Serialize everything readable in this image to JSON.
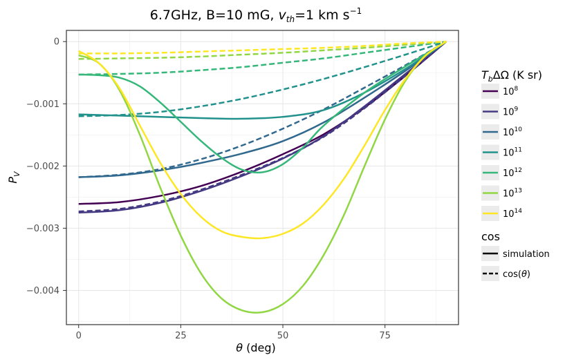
{
  "chart_data": {
    "type": "line",
    "title_main": "6.7GHz, B=10 mG, ",
    "title_var": "v",
    "title_sub": "th",
    "title_rest": "=1 km s",
    "title_sup": "−1",
    "xlabel_sym": "θ",
    "xlabel_rest": " (deg)",
    "ylabel_sym": "P",
    "ylabel_sub": "V",
    "xlim": [
      -3,
      93
    ],
    "ylim": [
      -0.00455,
      0.00018
    ],
    "xticks": [
      0,
      25,
      50,
      75
    ],
    "xtick_labels": [
      "0",
      "25",
      "50",
      "75"
    ],
    "yticks": [
      0,
      -0.001,
      -0.002,
      -0.003,
      -0.004
    ],
    "ytick_labels": [
      "0",
      "−0.001",
      "−0.002",
      "−0.003",
      "−0.004"
    ],
    "grid": true,
    "legend_color_title_sym": "T",
    "legend_color_title_sub": "b",
    "legend_color_title_rest": "ΔΩ (K sr)",
    "legend_color_entries": [
      {
        "base": "10",
        "exp": "8",
        "color": "#440154"
      },
      {
        "base": "10",
        "exp": "9",
        "color": "#443983"
      },
      {
        "base": "10",
        "exp": "10",
        "color": "#31688e"
      },
      {
        "base": "10",
        "exp": "11",
        "color": "#21918c"
      },
      {
        "base": "10",
        "exp": "12",
        "color": "#35b779"
      },
      {
        "base": "10",
        "exp": "13",
        "color": "#90d743"
      },
      {
        "base": "10",
        "exp": "14",
        "color": "#fde725"
      }
    ],
    "legend_style_title": "cos",
    "legend_style_entries": [
      {
        "label": "simulation",
        "dash": "solid"
      },
      {
        "label_pre": "cos(",
        "label_sym": "θ",
        "label_post": ")",
        "dash": "dashed"
      }
    ],
    "series": [
      {
        "name": "10^8 simulation",
        "color": "#440154",
        "dash": "solid",
        "x": [
          0,
          10,
          20,
          30,
          40,
          50,
          60,
          70,
          80,
          90
        ],
        "y": [
          -0.00261,
          -0.00258,
          -0.00248,
          -0.00232,
          -0.00209,
          -0.00181,
          -0.00149,
          -0.00106,
          -0.00055,
          0
        ]
      },
      {
        "name": "10^9 simulation",
        "color": "#443983",
        "dash": "solid",
        "x": [
          0,
          10,
          20,
          30,
          40,
          50,
          60,
          70,
          80,
          90
        ],
        "y": [
          -0.00275,
          -0.00271,
          -0.00259,
          -0.0024,
          -0.00216,
          -0.00188,
          -0.00152,
          -0.00104,
          -0.00052,
          0
        ]
      },
      {
        "name": "10^9 cos",
        "color": "#443983",
        "dash": "dashed",
        "x": [
          0,
          10,
          20,
          30,
          40,
          50,
          60,
          70,
          80,
          90
        ],
        "y": [
          -0.00273,
          -0.00269,
          -0.00257,
          -0.00238,
          -0.00214,
          -0.00187,
          -0.00153,
          -0.00107,
          -0.00055,
          0
        ]
      },
      {
        "name": "10^10 simulation",
        "color": "#31688e",
        "dash": "solid",
        "x": [
          0,
          10,
          20,
          30,
          40,
          50,
          60,
          70,
          80,
          90
        ],
        "y": [
          -0.00218,
          -0.00215,
          -0.00207,
          -0.00195,
          -0.0018,
          -0.0016,
          -0.0013,
          -0.0009,
          -0.00047,
          0
        ]
      },
      {
        "name": "10^10 cos",
        "color": "#31688e",
        "dash": "dashed",
        "x": [
          0,
          10,
          20,
          30,
          40,
          50,
          60,
          70,
          80,
          90
        ],
        "y": [
          -0.00218,
          -0.00214,
          -0.00205,
          -0.00189,
          -0.00167,
          -0.0014,
          -0.00109,
          -0.00074,
          -0.00038,
          0
        ]
      },
      {
        "name": "10^11 simulation",
        "color": "#21918c",
        "dash": "solid",
        "x": [
          0,
          10,
          20,
          30,
          40,
          50,
          60,
          70,
          80,
          90
        ],
        "y": [
          -0.00117,
          -0.00119,
          -0.00121,
          -0.00123,
          -0.00124,
          -0.00121,
          -0.0011,
          -0.00082,
          -0.00044,
          0
        ]
      },
      {
        "name": "10^11 cos",
        "color": "#21918c",
        "dash": "dashed",
        "x": [
          0,
          10,
          20,
          30,
          40,
          50,
          60,
          70,
          80,
          90
        ],
        "y": [
          -0.0012,
          -0.00118,
          -0.00113,
          -0.00104,
          -0.00092,
          -0.00077,
          -0.0006,
          -0.00041,
          -0.00021,
          0
        ]
      },
      {
        "name": "10^12 simulation",
        "color": "#35b779",
        "dash": "solid",
        "x": [
          0,
          5,
          10,
          15,
          20,
          25,
          30,
          35,
          40,
          45,
          50,
          55,
          60,
          70,
          80,
          90
        ],
        "y": [
          -0.00053,
          -0.00054,
          -0.00058,
          -0.00072,
          -0.00098,
          -0.00129,
          -0.0016,
          -0.00187,
          -0.00206,
          -0.0021,
          -0.00197,
          -0.0017,
          -0.00135,
          -0.00082,
          -0.0004,
          0
        ]
      },
      {
        "name": "10^12 cos",
        "color": "#35b779",
        "dash": "dashed",
        "x": [
          0,
          10,
          20,
          30,
          40,
          50,
          60,
          70,
          80,
          90
        ],
        "y": [
          -0.00053,
          -0.00052,
          -0.0005,
          -0.00046,
          -0.00041,
          -0.00034,
          -0.00027,
          -0.00018,
          -9e-05,
          0
        ]
      },
      {
        "name": "10^13 simulation",
        "color": "#90d743",
        "dash": "solid",
        "x": [
          0,
          5,
          10,
          15,
          20,
          25,
          30,
          35,
          40,
          45,
          50,
          55,
          60,
          65,
          70,
          75,
          80,
          85,
          90
        ],
        "y": [
          -0.00022,
          -0.00035,
          -0.00078,
          -0.0015,
          -0.00235,
          -0.00312,
          -0.00373,
          -0.00413,
          -0.00432,
          -0.00435,
          -0.00422,
          -0.00392,
          -0.00343,
          -0.00278,
          -0.002,
          -0.00125,
          -0.00063,
          -0.00022,
          0
        ]
      },
      {
        "name": "10^13 cos",
        "color": "#90d743",
        "dash": "dashed",
        "x": [
          0,
          10,
          20,
          30,
          40,
          50,
          60,
          70,
          80,
          90
        ],
        "y": [
          -0.00028,
          -0.00027,
          -0.00026,
          -0.00024,
          -0.00021,
          -0.00018,
          -0.00014,
          -0.0001,
          -5e-05,
          0
        ]
      },
      {
        "name": "10^14 simulation",
        "color": "#fde725",
        "dash": "solid",
        "x": [
          0,
          5,
          10,
          15,
          20,
          25,
          30,
          35,
          40,
          45,
          50,
          55,
          60,
          65,
          70,
          75,
          80,
          85,
          90
        ],
        "y": [
          -0.00015,
          -0.00035,
          -0.00075,
          -0.00135,
          -0.00195,
          -0.00245,
          -0.00282,
          -0.00305,
          -0.00314,
          -0.00316,
          -0.00309,
          -0.00292,
          -0.00262,
          -0.0022,
          -0.00167,
          -0.0011,
          -0.0006,
          -0.00022,
          0
        ]
      },
      {
        "name": "10^14 cos",
        "color": "#fde725",
        "dash": "dashed",
        "x": [
          0,
          10,
          20,
          30,
          40,
          50,
          60,
          70,
          80,
          90
        ],
        "y": [
          -0.00019,
          -0.00019,
          -0.00018,
          -0.00016,
          -0.00014,
          -0.00012,
          -0.0001,
          -7e-05,
          -3e-05,
          0
        ]
      }
    ]
  }
}
